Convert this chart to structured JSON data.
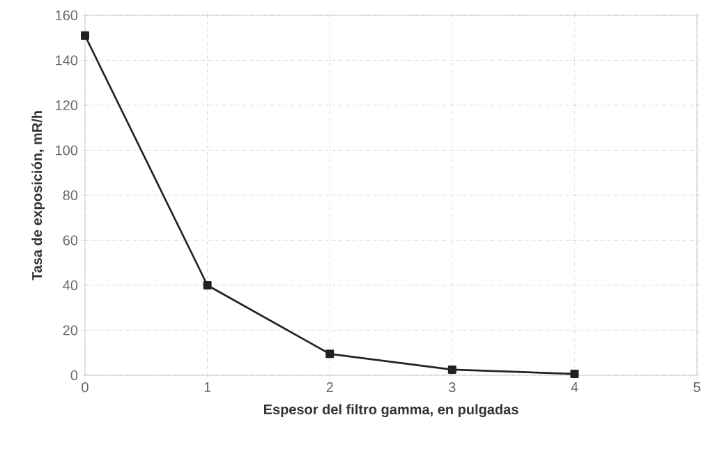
{
  "chart_data": {
    "type": "line",
    "xlabel": "Espesor del filtro gamma, en pulgadas",
    "ylabel": "Tasa de exposición, mR/h",
    "x": [
      0,
      1,
      2,
      3,
      4
    ],
    "series": [
      {
        "color": "#222222",
        "values": [
          151,
          40,
          9.5,
          2.5,
          0.6
        ]
      }
    ],
    "xlim": [
      0,
      5
    ],
    "ylim": [
      0,
      160
    ],
    "xticks": [
      0,
      1,
      2,
      3,
      4,
      5
    ],
    "yticks": [
      0,
      20,
      40,
      60,
      80,
      100,
      120,
      140,
      160
    ],
    "grid": true,
    "marker": "square",
    "line_style": "solid"
  }
}
